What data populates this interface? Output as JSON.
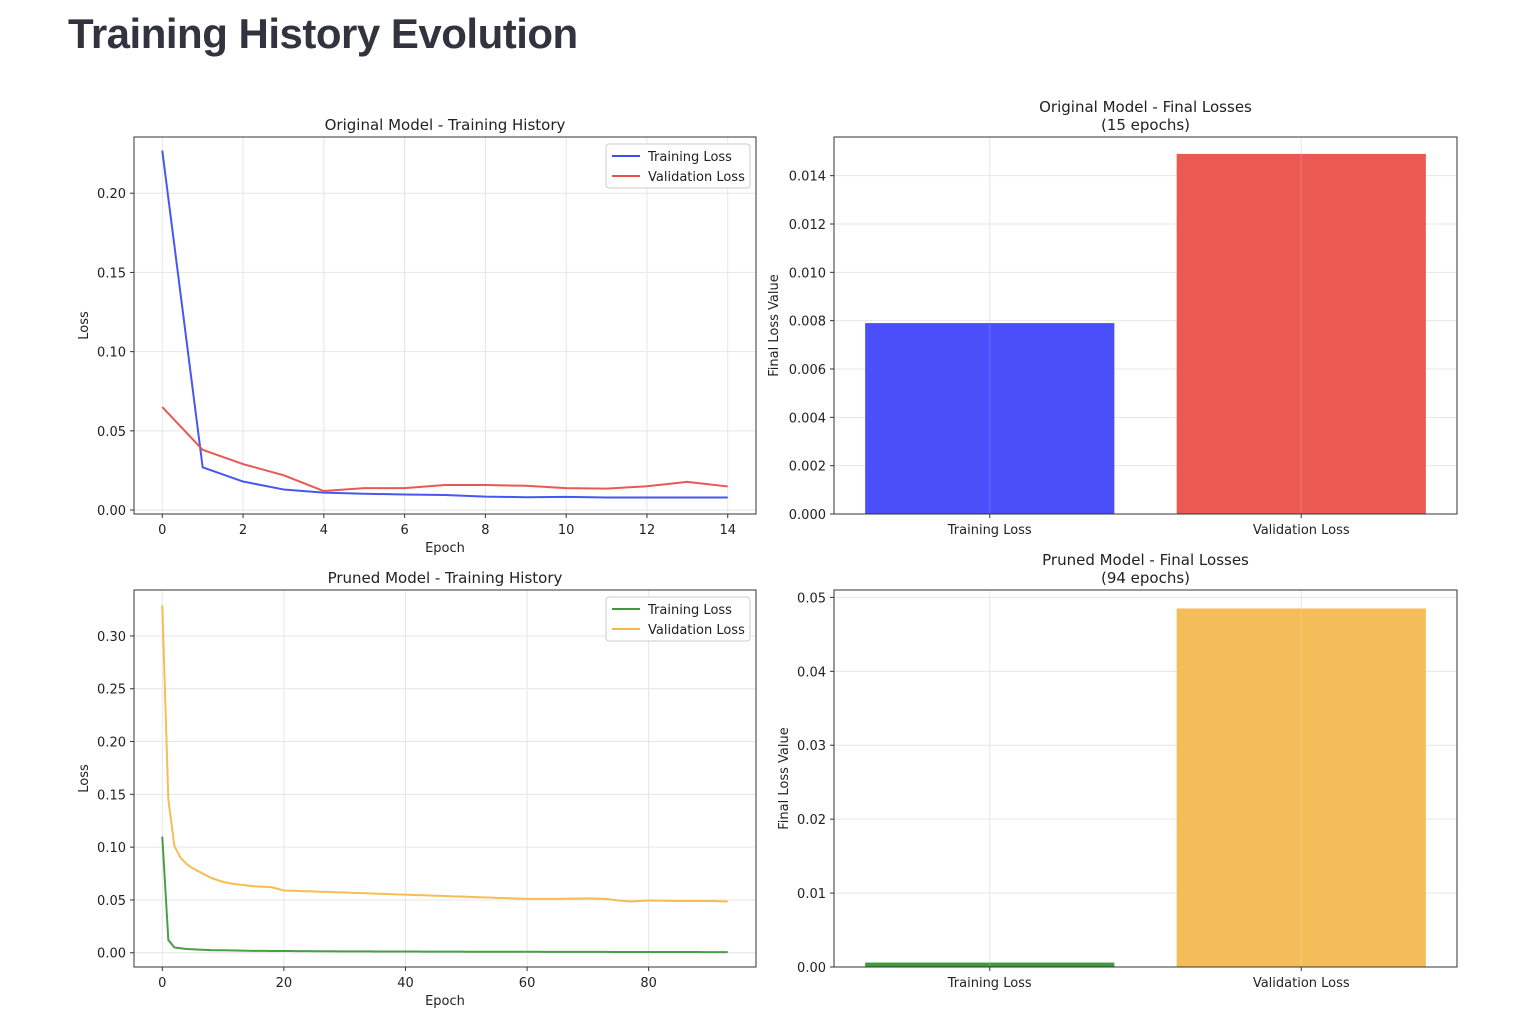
{
  "page": {
    "title": "Training History Evolution"
  },
  "chart_data": [
    {
      "type": "line",
      "title": "Original Model - Training History",
      "xlabel": "Epoch",
      "ylabel": "Loss",
      "xlim": [
        -0.7,
        14.7
      ],
      "ylim": [
        -0.0025,
        0.2355
      ],
      "xticks": [
        0,
        2,
        4,
        6,
        8,
        10,
        12,
        14
      ],
      "xtick_labels": [
        "0",
        "2",
        "4",
        "6",
        "8",
        "10",
        "12",
        "14"
      ],
      "yticks": [
        0,
        0.05,
        0.1,
        0.15,
        0.2
      ],
      "ytick_labels": [
        "0.00",
        "0.05",
        "0.10",
        "0.15",
        "0.20"
      ],
      "grid": true,
      "legend": "upper right",
      "x": [
        0,
        1,
        2,
        3,
        4,
        5,
        6,
        7,
        8,
        9,
        10,
        11,
        12,
        13,
        14
      ],
      "series": [
        {
          "name": "Training Loss",
          "color": "#3d4ef0",
          "values": [
            0.227,
            0.027,
            0.018,
            0.013,
            0.011,
            0.0103,
            0.0098,
            0.0095,
            0.0085,
            0.0081,
            0.0083,
            0.0079,
            0.0079,
            0.0079,
            0.0079
          ]
        },
        {
          "name": "Validation Loss",
          "color": "#e8504a",
          "values": [
            0.065,
            0.038,
            0.029,
            0.022,
            0.012,
            0.0138,
            0.0138,
            0.0158,
            0.0158,
            0.0153,
            0.0138,
            0.0135,
            0.015,
            0.0178,
            0.0149
          ]
        }
      ]
    },
    {
      "type": "bar",
      "title": "Original Model - Final Losses",
      "subtitle": "(15 epochs)",
      "xlabel": "",
      "ylabel": "Final Loss Value",
      "ylim": [
        0,
        0.0156
      ],
      "yticks": [
        0,
        0.002,
        0.004,
        0.006,
        0.008,
        0.01,
        0.012,
        0.014
      ],
      "ytick_labels": [
        "0.000",
        "0.002",
        "0.004",
        "0.006",
        "0.008",
        "0.010",
        "0.012",
        "0.014"
      ],
      "grid": true,
      "categories": [
        "Training Loss",
        "Validation Loss"
      ],
      "values": [
        0.0079,
        0.0149
      ],
      "colors": [
        "#4a4ffa",
        "#eb5a52"
      ]
    },
    {
      "type": "line",
      "title": "Pruned Model - Training History",
      "xlabel": "Epoch",
      "ylabel": "Loss",
      "xlim": [
        -4.65,
        97.65
      ],
      "ylim": [
        -0.0135,
        0.3435
      ],
      "xticks": [
        0,
        20,
        40,
        60,
        80
      ],
      "xtick_labels": [
        "0",
        "20",
        "40",
        "60",
        "80"
      ],
      "yticks": [
        0,
        0.05,
        0.1,
        0.15,
        0.2,
        0.25,
        0.3
      ],
      "ytick_labels": [
        "0.00",
        "0.05",
        "0.10",
        "0.15",
        "0.20",
        "0.25",
        "0.30"
      ],
      "grid": true,
      "legend": "upper right",
      "x_range": [
        0,
        93
      ],
      "series": [
        {
          "name": "Training Loss",
          "color": "#3f9a3c",
          "points": [
            [
              0,
              0.11
            ],
            [
              1,
              0.012
            ],
            [
              2,
              0.005
            ],
            [
              4,
              0.0035
            ],
            [
              8,
              0.0025
            ],
            [
              15,
              0.0018
            ],
            [
              30,
              0.0013
            ],
            [
              50,
              0.001
            ],
            [
              70,
              0.0008
            ],
            [
              93,
              0.0006
            ]
          ]
        },
        {
          "name": "Validation Loss",
          "color": "#f6b94a",
          "points": [
            [
              0,
              0.329
            ],
            [
              1,
              0.145
            ],
            [
              2,
              0.101
            ],
            [
              3,
              0.09
            ],
            [
              4,
              0.084
            ],
            [
              5,
              0.08
            ],
            [
              6,
              0.077
            ],
            [
              8,
              0.071
            ],
            [
              10,
              0.067
            ],
            [
              12,
              0.065
            ],
            [
              15,
              0.063
            ],
            [
              18,
              0.062
            ],
            [
              20,
              0.059
            ],
            [
              25,
              0.058
            ],
            [
              30,
              0.057
            ],
            [
              35,
              0.056
            ],
            [
              40,
              0.055
            ],
            [
              45,
              0.054
            ],
            [
              50,
              0.053
            ],
            [
              55,
              0.052
            ],
            [
              60,
              0.051
            ],
            [
              65,
              0.051
            ],
            [
              70,
              0.0515
            ],
            [
              73,
              0.051
            ],
            [
              75,
              0.0495
            ],
            [
              77,
              0.0485
            ],
            [
              80,
              0.0495
            ],
            [
              85,
              0.049
            ],
            [
              90,
              0.049
            ],
            [
              93,
              0.0485
            ]
          ]
        }
      ]
    },
    {
      "type": "bar",
      "title": "Pruned Model - Final Losses",
      "subtitle": "(94 epochs)",
      "xlabel": "",
      "ylabel": "Final Loss Value",
      "ylim": [
        0,
        0.051
      ],
      "yticks": [
        0,
        0.01,
        0.02,
        0.03,
        0.04,
        0.05
      ],
      "ytick_labels": [
        "0.00",
        "0.01",
        "0.02",
        "0.03",
        "0.04",
        "0.05"
      ],
      "grid": true,
      "categories": [
        "Training Loss",
        "Validation Loss"
      ],
      "values": [
        0.0006,
        0.0485
      ],
      "colors": [
        "#3f9a3c",
        "#f5bd5a"
      ]
    }
  ]
}
